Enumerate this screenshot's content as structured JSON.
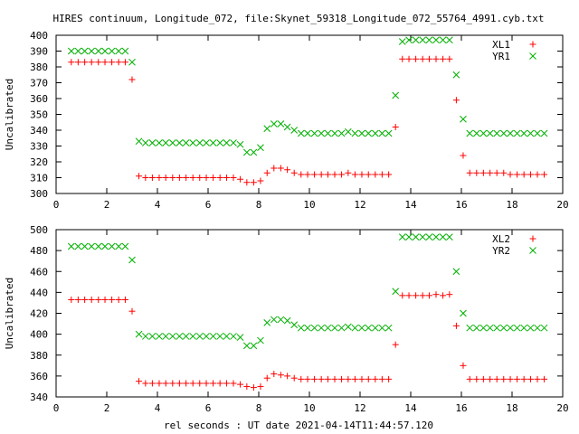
{
  "title": "HIRES continuum, Longitude_072, file:Skynet_59318_Longitude_072_55764_4991.cyb.txt",
  "xlabel": "rel seconds : UT date 2021-04-14T11:44:57.120",
  "chart_data": [
    {
      "type": "scatter",
      "ylabel": "Uncalibrated",
      "xlim": [
        0,
        20
      ],
      "ylim": [
        300,
        400
      ],
      "xticks": [
        0,
        2,
        4,
        6,
        8,
        10,
        12,
        14,
        16,
        18,
        20
      ],
      "yticks": [
        300,
        310,
        320,
        330,
        340,
        350,
        360,
        370,
        380,
        390,
        400
      ],
      "legend_position": "top-right",
      "series": [
        {
          "name": "XL1",
          "color": "#ff0000",
          "marker": "plus",
          "x": [
            0.6,
            0.87,
            1.13,
            1.4,
            1.67,
            1.93,
            2.2,
            2.47,
            2.73,
            3.0,
            3.27,
            3.53,
            3.8,
            4.07,
            4.33,
            4.6,
            4.87,
            5.13,
            5.4,
            5.67,
            5.93,
            6.2,
            6.47,
            6.73,
            7.0,
            7.27,
            7.53,
            7.8,
            8.07,
            8.33,
            8.6,
            8.87,
            9.13,
            9.4,
            9.67,
            9.93,
            10.2,
            10.47,
            10.73,
            11.0,
            11.27,
            11.53,
            11.8,
            12.07,
            12.33,
            12.6,
            12.87,
            13.13,
            13.4,
            13.67,
            13.93,
            14.2,
            14.47,
            14.73,
            15.0,
            15.27,
            15.53,
            15.8,
            16.07,
            16.33,
            16.6,
            16.87,
            17.13,
            17.4,
            17.67,
            17.93,
            18.2,
            18.47,
            18.73,
            19.0,
            19.27
          ],
          "y": [
            383,
            383,
            383,
            383,
            383,
            383,
            383,
            383,
            383,
            372,
            311,
            310,
            310,
            310,
            310,
            310,
            310,
            310,
            310,
            310,
            310,
            310,
            310,
            310,
            310,
            309,
            307,
            307,
            308,
            313,
            316,
            316,
            315,
            313,
            312,
            312,
            312,
            312,
            312,
            312,
            312,
            313,
            312,
            312,
            312,
            312,
            312,
            312,
            342,
            385,
            385,
            385,
            385,
            385,
            385,
            385,
            385,
            359,
            324,
            313,
            313,
            313,
            313,
            313,
            313,
            312,
            312,
            312,
            312,
            312,
            312
          ]
        },
        {
          "name": "YR1",
          "color": "#00b000",
          "marker": "cross",
          "x": [
            0.6,
            0.87,
            1.13,
            1.4,
            1.67,
            1.93,
            2.2,
            2.47,
            2.73,
            3.0,
            3.27,
            3.53,
            3.8,
            4.07,
            4.33,
            4.6,
            4.87,
            5.13,
            5.4,
            5.67,
            5.93,
            6.2,
            6.47,
            6.73,
            7.0,
            7.27,
            7.53,
            7.8,
            8.07,
            8.33,
            8.6,
            8.87,
            9.13,
            9.4,
            9.67,
            9.93,
            10.2,
            10.47,
            10.73,
            11.0,
            11.27,
            11.53,
            11.8,
            12.07,
            12.33,
            12.6,
            12.87,
            13.13,
            13.4,
            13.67,
            13.93,
            14.2,
            14.47,
            14.73,
            15.0,
            15.27,
            15.53,
            15.8,
            16.07,
            16.33,
            16.6,
            16.87,
            17.13,
            17.4,
            17.67,
            17.93,
            18.2,
            18.47,
            18.73,
            19.0,
            19.27
          ],
          "y": [
            390,
            390,
            390,
            390,
            390,
            390,
            390,
            390,
            390,
            383,
            333,
            332,
            332,
            332,
            332,
            332,
            332,
            332,
            332,
            332,
            332,
            332,
            332,
            332,
            332,
            331,
            326,
            326,
            329,
            341,
            344,
            344,
            342,
            340,
            338,
            338,
            338,
            338,
            338,
            338,
            338,
            339,
            338,
            338,
            338,
            338,
            338,
            338,
            362,
            396,
            397,
            397,
            397,
            397,
            397,
            397,
            397,
            375,
            347,
            338,
            338,
            338,
            338,
            338,
            338,
            338,
            338,
            338,
            338,
            338,
            338
          ]
        }
      ]
    },
    {
      "type": "scatter",
      "ylabel": "Uncalibrated",
      "xlim": [
        0,
        20
      ],
      "ylim": [
        340,
        500
      ],
      "xticks": [
        0,
        2,
        4,
        6,
        8,
        10,
        12,
        14,
        16,
        18,
        20
      ],
      "yticks": [
        340,
        360,
        380,
        400,
        420,
        440,
        460,
        480,
        500
      ],
      "legend_position": "top-right",
      "series": [
        {
          "name": "XL2",
          "color": "#ff0000",
          "marker": "plus",
          "x": [
            0.6,
            0.87,
            1.13,
            1.4,
            1.67,
            1.93,
            2.2,
            2.47,
            2.73,
            3.0,
            3.27,
            3.53,
            3.8,
            4.07,
            4.33,
            4.6,
            4.87,
            5.13,
            5.4,
            5.67,
            5.93,
            6.2,
            6.47,
            6.73,
            7.0,
            7.27,
            7.53,
            7.8,
            8.07,
            8.33,
            8.6,
            8.87,
            9.13,
            9.4,
            9.67,
            9.93,
            10.2,
            10.47,
            10.73,
            11.0,
            11.27,
            11.53,
            11.8,
            12.07,
            12.33,
            12.6,
            12.87,
            13.13,
            13.4,
            13.67,
            13.93,
            14.2,
            14.47,
            14.73,
            15.0,
            15.27,
            15.53,
            15.8,
            16.07,
            16.33,
            16.6,
            16.87,
            17.13,
            17.4,
            17.67,
            17.93,
            18.2,
            18.47,
            18.73,
            19.0,
            19.27
          ],
          "y": [
            433,
            433,
            433,
            433,
            433,
            433,
            433,
            433,
            433,
            422,
            355,
            353,
            353,
            353,
            353,
            353,
            353,
            353,
            353,
            353,
            353,
            353,
            353,
            353,
            353,
            352,
            350,
            349,
            350,
            358,
            362,
            361,
            360,
            358,
            357,
            357,
            357,
            357,
            357,
            357,
            357,
            357,
            357,
            357,
            357,
            357,
            357,
            357,
            390,
            437,
            437,
            437,
            437,
            437,
            438,
            437,
            438,
            408,
            370,
            357,
            357,
            357,
            357,
            357,
            357,
            357,
            357,
            357,
            357,
            357,
            357
          ]
        },
        {
          "name": "YR2",
          "color": "#00b000",
          "marker": "cross",
          "x": [
            0.6,
            0.87,
            1.13,
            1.4,
            1.67,
            1.93,
            2.2,
            2.47,
            2.73,
            3.0,
            3.27,
            3.53,
            3.8,
            4.07,
            4.33,
            4.6,
            4.87,
            5.13,
            5.4,
            5.67,
            5.93,
            6.2,
            6.47,
            6.73,
            7.0,
            7.27,
            7.53,
            7.8,
            8.07,
            8.33,
            8.6,
            8.87,
            9.13,
            9.4,
            9.67,
            9.93,
            10.2,
            10.47,
            10.73,
            11.0,
            11.27,
            11.53,
            11.8,
            12.07,
            12.33,
            12.6,
            12.87,
            13.13,
            13.4,
            13.67,
            13.93,
            14.2,
            14.47,
            14.73,
            15.0,
            15.27,
            15.53,
            15.8,
            16.07,
            16.33,
            16.6,
            16.87,
            17.13,
            17.4,
            17.67,
            17.93,
            18.2,
            18.47,
            18.73,
            19.0,
            19.27
          ],
          "y": [
            484,
            484,
            484,
            484,
            484,
            484,
            484,
            484,
            484,
            471,
            400,
            398,
            398,
            398,
            398,
            398,
            398,
            398,
            398,
            398,
            398,
            398,
            398,
            398,
            398,
            397,
            389,
            389,
            394,
            411,
            414,
            414,
            413,
            409,
            406,
            406,
            406,
            406,
            406,
            406,
            406,
            407,
            406,
            406,
            406,
            406,
            406,
            406,
            441,
            493,
            493,
            493,
            493,
            493,
            493,
            493,
            493,
            460,
            420,
            406,
            406,
            406,
            406,
            406,
            406,
            406,
            406,
            406,
            406,
            406,
            406
          ]
        }
      ]
    }
  ]
}
